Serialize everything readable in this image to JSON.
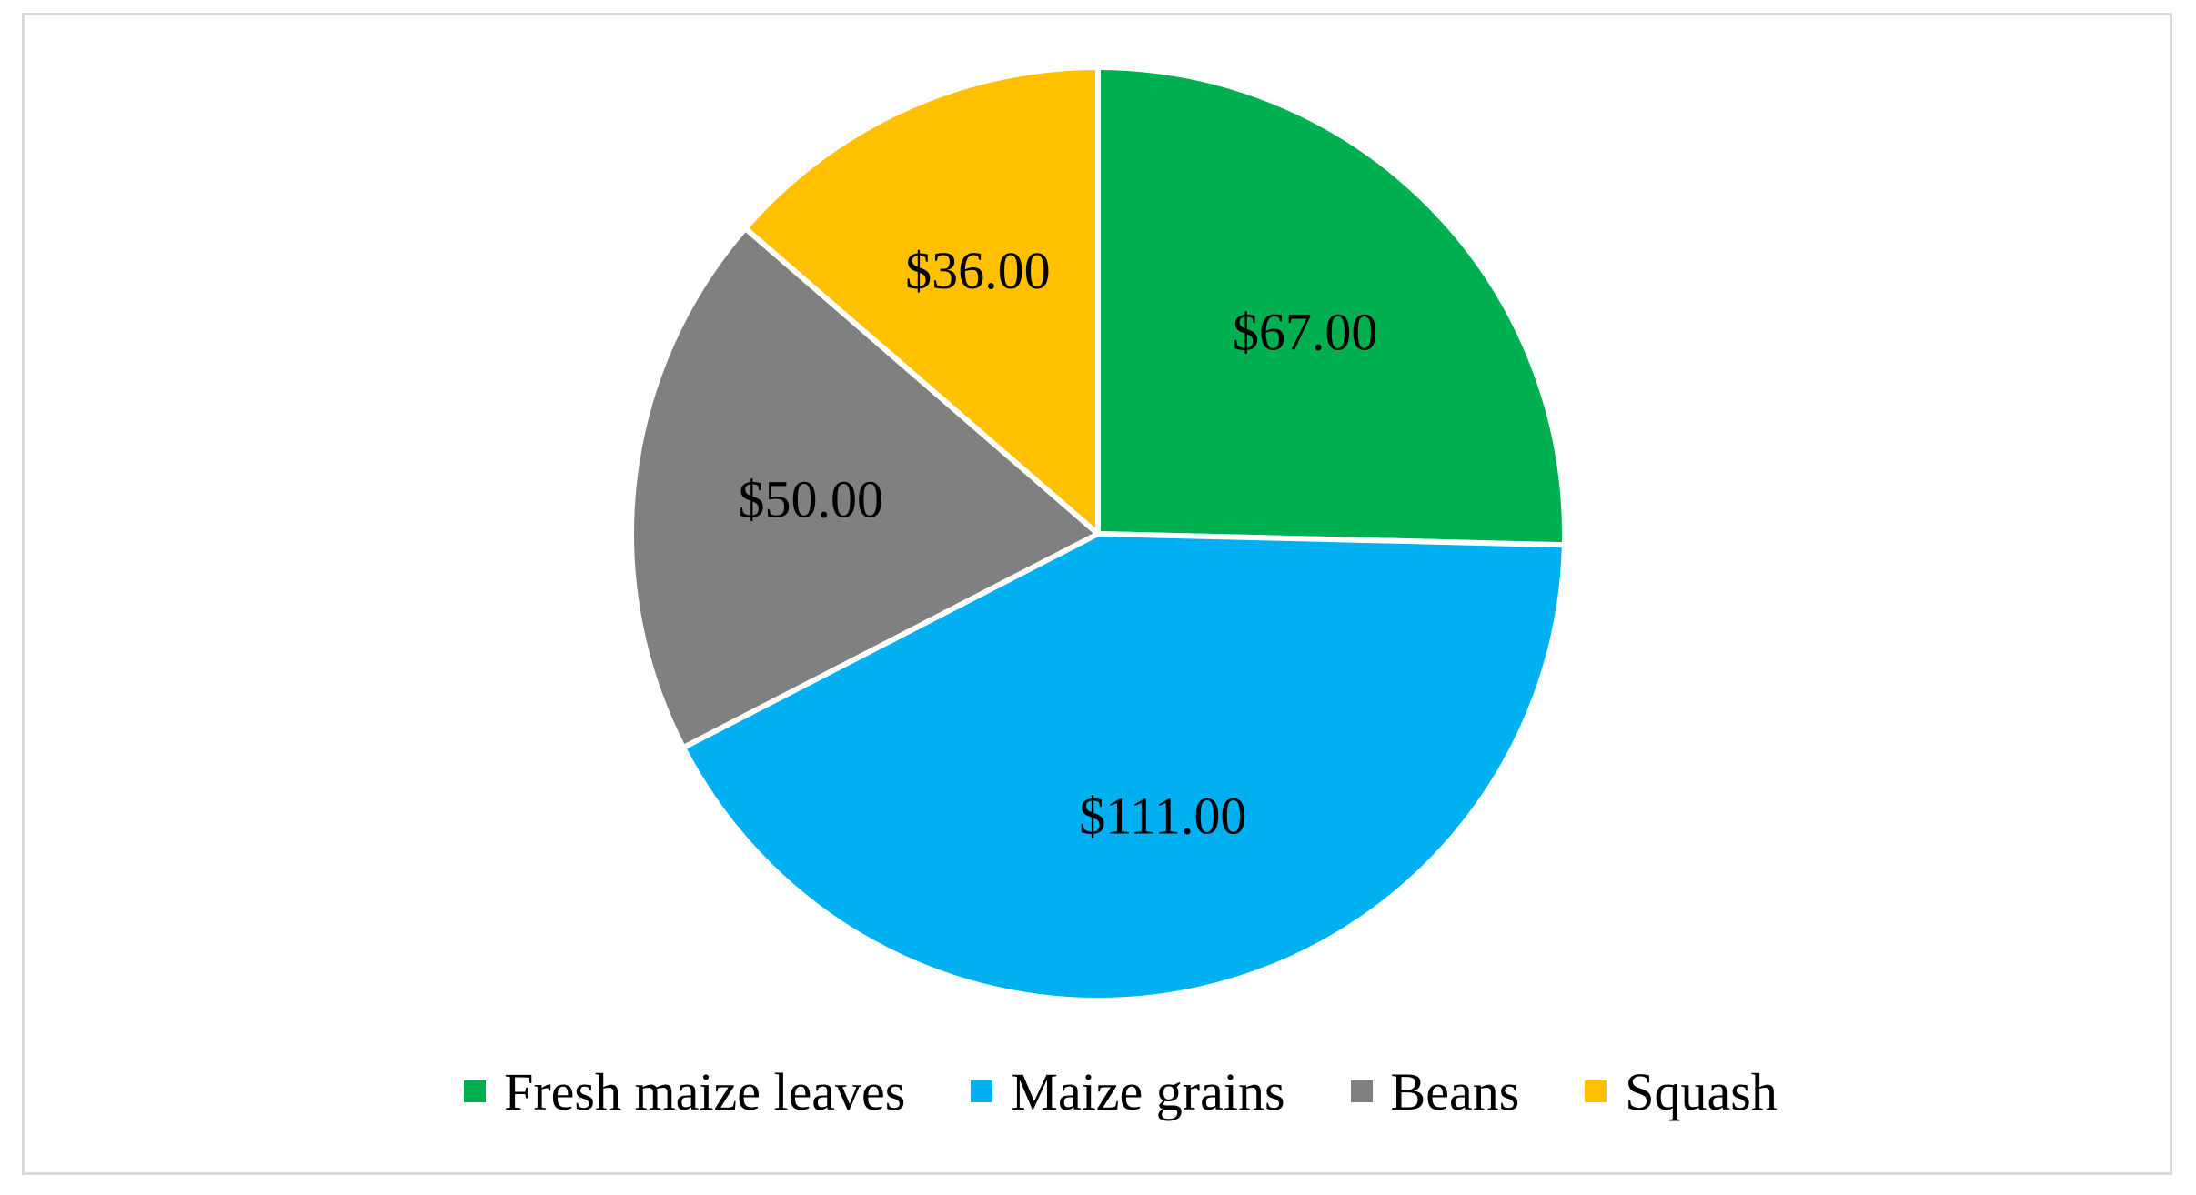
{
  "chart_data": {
    "type": "pie",
    "title": "",
    "categories": [
      "Fresh maize leaves",
      "Maize grains",
      "Beans",
      "Squash"
    ],
    "values": [
      67,
      111,
      50,
      36
    ],
    "data_labels": [
      "$67.00",
      "$111.00",
      "$50.00",
      "$36.00"
    ],
    "colors": [
      "#00B050",
      "#00B0F0",
      "#808080",
      "#FFC000"
    ],
    "start_angle_deg": 0,
    "direction": "clockwise",
    "legend": {
      "position": "bottom",
      "entries": [
        "Fresh maize leaves",
        "Maize grains",
        "Beans",
        "Squash"
      ]
    }
  }
}
